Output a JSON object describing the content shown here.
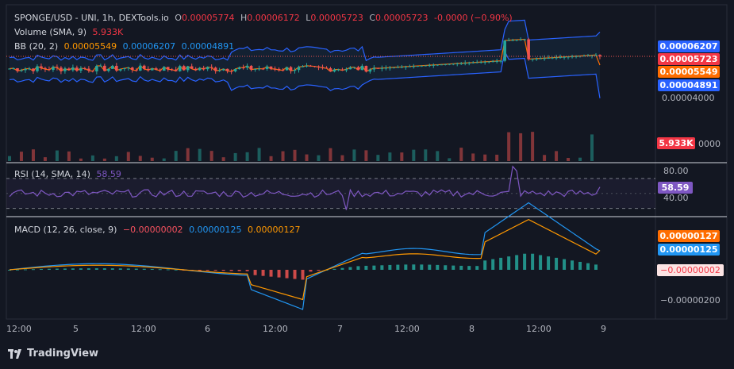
{
  "header": {
    "symbol": "SPONGE/USD - UNI, 1h, DEXTools.io",
    "o_label": "O",
    "o_value": "0.00005774",
    "h_label": "H",
    "h_value": "0.00006172",
    "l_label": "L",
    "l_value": "0.00005723",
    "c_label": "C",
    "c_value": "0.00005723",
    "change": "-0.0000 (−0.90%)"
  },
  "volume_legend": {
    "label": "Volume (SMA, 9)",
    "value": "5.933K"
  },
  "bb_legend": {
    "label": "BB (20, 2)",
    "basis": "0.00005549",
    "upper": "0.00006207",
    "lower": "0.00004891"
  },
  "rsi_legend": {
    "label": "RSI (14, SMA, 14)",
    "value": "58.59"
  },
  "macd_legend": {
    "label": "MACD (12, 26, close, 9)",
    "hist": "−0.00000002",
    "macd": "0.00000125",
    "signal": "0.00000127"
  },
  "price_scale": {
    "upper_badge": "0.00006207",
    "last_badge": "0.00005723",
    "basis_badge": "0.00005549",
    "lower_badge": "0.00004891",
    "tick_4": "0.00004000",
    "volume_badge": "5.933K",
    "volume_tick": "0000"
  },
  "rsi_scale": {
    "tick_80": "80.00",
    "tick_40": "40.00",
    "badge": "58.59"
  },
  "macd_scale": {
    "signal_badge": "0.00000127",
    "macd_badge": "0.00000125",
    "hist_badge": "−0.00000002",
    "tick_neg": "−0.00000200"
  },
  "time_axis": [
    "12:00",
    "5",
    "12:00",
    "6",
    "12:00",
    "7",
    "12:00",
    "8",
    "12:00",
    "9"
  ],
  "brand": "TradingView",
  "colors": {
    "bull": "#26a69a",
    "bear": "#ef5350",
    "bb_band": "#2962ff",
    "basis": "#ff6d00",
    "rsi": "#7e57c2",
    "macd": "#2196f3",
    "signal": "#ff9800",
    "bg": "#131722"
  },
  "chart_data": {
    "type": "candlestick",
    "x": [
      "4 12:00",
      "5 00:00",
      "5 12:00",
      "6 00:00",
      "6 12:00",
      "7 00:00",
      "7 12:00",
      "8 00:00",
      "8 12:00",
      "9 00:00"
    ],
    "price_range": [
      3.75e-05,
      6.75e-05
    ],
    "last": {
      "open": 5.774e-05,
      "high": 6.172e-05,
      "low": 5.723e-05,
      "close": 5.723e-05
    },
    "bb": {
      "basis": 5.549e-05,
      "upper": 6.207e-05,
      "lower": 4.891e-05
    },
    "volume_last": 5933,
    "rsi": {
      "value": 58.59,
      "levels": [
        70,
        30
      ],
      "ylim": [
        20,
        90
      ]
    },
    "macd": {
      "macd": 1.25e-06,
      "signal": 1.27e-06,
      "hist": -2e-08
    }
  }
}
